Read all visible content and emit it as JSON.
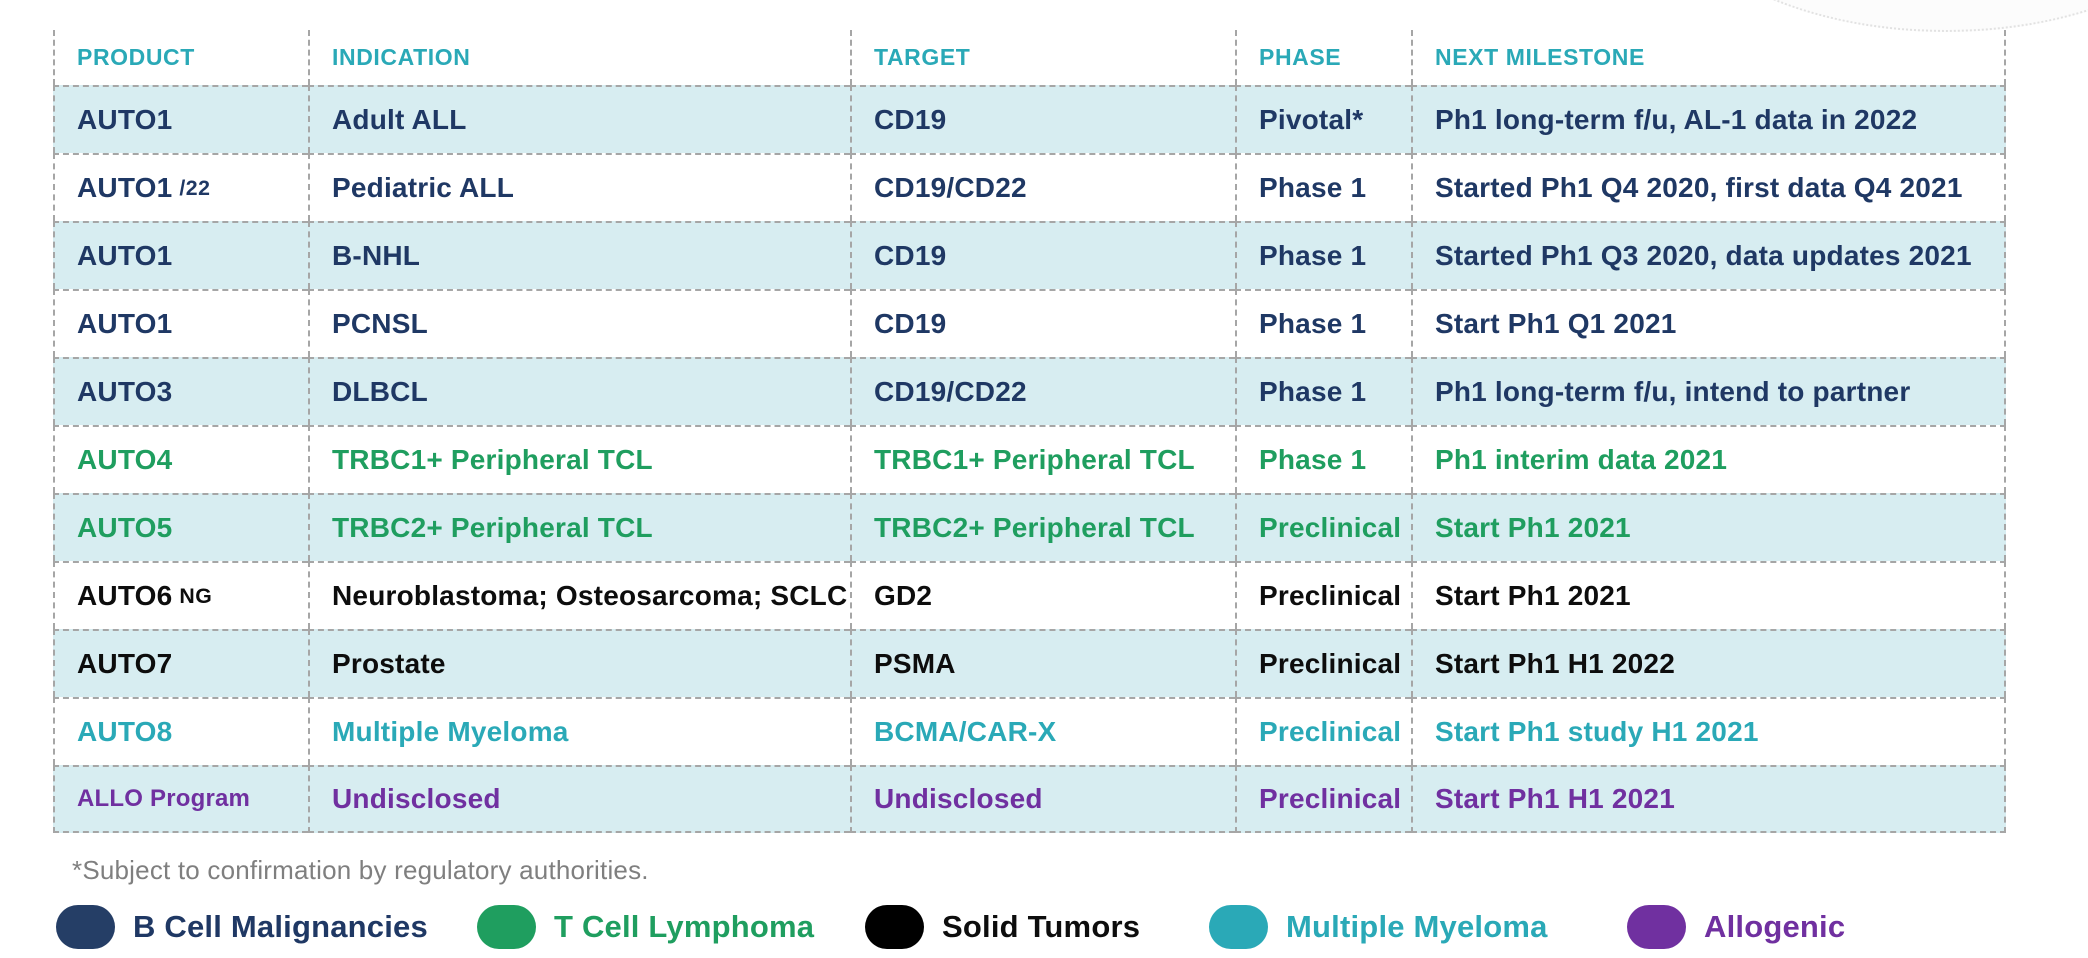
{
  "table": {
    "columns": [
      "PRODUCT",
      "INDICATION",
      "TARGET",
      "PHASE",
      "NEXT MILESTONE"
    ],
    "rows": [
      {
        "product": "AUTO1",
        "product_suffix": "",
        "indication": "Adult ALL",
        "target": "CD19",
        "phase": "Pivotal*",
        "milestone": "Ph1 long-term f/u, AL-1 data in 2022",
        "category": "b-cell",
        "shaded": true,
        "small_product": false
      },
      {
        "product": "AUTO1",
        "product_suffix": "/22",
        "indication": "Pediatric ALL",
        "target": "CD19/CD22",
        "phase": "Phase 1",
        "milestone": "Started Ph1 Q4 2020, first data Q4 2021",
        "category": "b-cell",
        "shaded": false,
        "small_product": false
      },
      {
        "product": "AUTO1",
        "product_suffix": "",
        "indication": "B-NHL",
        "target": "CD19",
        "phase": "Phase 1",
        "milestone": "Started Ph1 Q3 2020, data updates 2021",
        "category": "b-cell",
        "shaded": true,
        "small_product": false
      },
      {
        "product": "AUTO1",
        "product_suffix": "",
        "indication": "PCNSL",
        "target": "CD19",
        "phase": "Phase 1",
        "milestone": "Start Ph1 Q1 2021",
        "category": "b-cell",
        "shaded": false,
        "small_product": false
      },
      {
        "product": "AUTO3",
        "product_suffix": "",
        "indication": "DLBCL",
        "target": "CD19/CD22",
        "phase": "Phase 1",
        "milestone": "Ph1 long-term f/u, intend to partner",
        "category": "b-cell",
        "shaded": true,
        "small_product": false
      },
      {
        "product": "AUTO4",
        "product_suffix": "",
        "indication": "TRBC1+ Peripheral TCL",
        "target": "TRBC1+ Peripheral TCL",
        "phase": "Phase 1",
        "milestone": "Ph1 interim data 2021",
        "category": "t-cell",
        "shaded": false,
        "small_product": false
      },
      {
        "product": "AUTO5",
        "product_suffix": "",
        "indication": "TRBC2+ Peripheral TCL",
        "target": "TRBC2+ Peripheral TCL",
        "phase": "Preclinical",
        "milestone": "Start Ph1 2021",
        "category": "t-cell",
        "shaded": true,
        "small_product": false
      },
      {
        "product": "AUTO6",
        "product_suffix": "NG",
        "indication": "Neuroblastoma;  Osteosarcoma; SCLC",
        "target": "GD2",
        "phase": "Preclinical",
        "milestone": "Start Ph1 2021",
        "category": "solid",
        "shaded": false,
        "small_product": false
      },
      {
        "product": "AUTO7",
        "product_suffix": "",
        "indication": "Prostate",
        "target": "PSMA",
        "phase": "Preclinical",
        "milestone": "Start Ph1 H1 2022",
        "category": "solid",
        "shaded": true,
        "small_product": false
      },
      {
        "product": "AUTO8",
        "product_suffix": "",
        "indication": "Multiple Myeloma",
        "target": "BCMA/CAR-X",
        "phase": "Preclinical",
        "milestone": "Start Ph1 study H1 2021",
        "category": "myeloma",
        "shaded": false,
        "small_product": false
      },
      {
        "product": "ALLO Program",
        "product_suffix": "",
        "indication": "Undisclosed",
        "target": "Undisclosed",
        "phase": "Preclinical",
        "milestone": "Start Ph1 H1 2021",
        "category": "allogenic",
        "shaded": true,
        "small_product": true
      }
    ]
  },
  "footnote": "*Subject to confirmation by regulatory authorities.",
  "legend": [
    {
      "label": "B Cell Malignancies",
      "category": "b-cell",
      "color": "#253e66"
    },
    {
      "label": "T Cell Lymphoma",
      "category": "t-cell",
      "color": "#1f9e5f"
    },
    {
      "label": "Solid Tumors",
      "category": "solid",
      "color": "#000000"
    },
    {
      "label": "Multiple Myeloma",
      "category": "myeloma",
      "color": "#2aa9b7"
    },
    {
      "label": "Allogenic",
      "category": "allogenic",
      "color": "#7030a0"
    }
  ],
  "colors": {
    "header_accent": "#2aa9b7",
    "row_highlight": "#d7edf1",
    "b_cell_text": "#1f3864",
    "t_cell_text": "#1f9e5f",
    "solid_tumor_text": "#0d0d0d",
    "myeloma_text": "#2aa9b7",
    "allogenic_text": "#7030a0",
    "footnote_gray": "#7f7f7f",
    "border_gray": "#a6a6a6"
  }
}
